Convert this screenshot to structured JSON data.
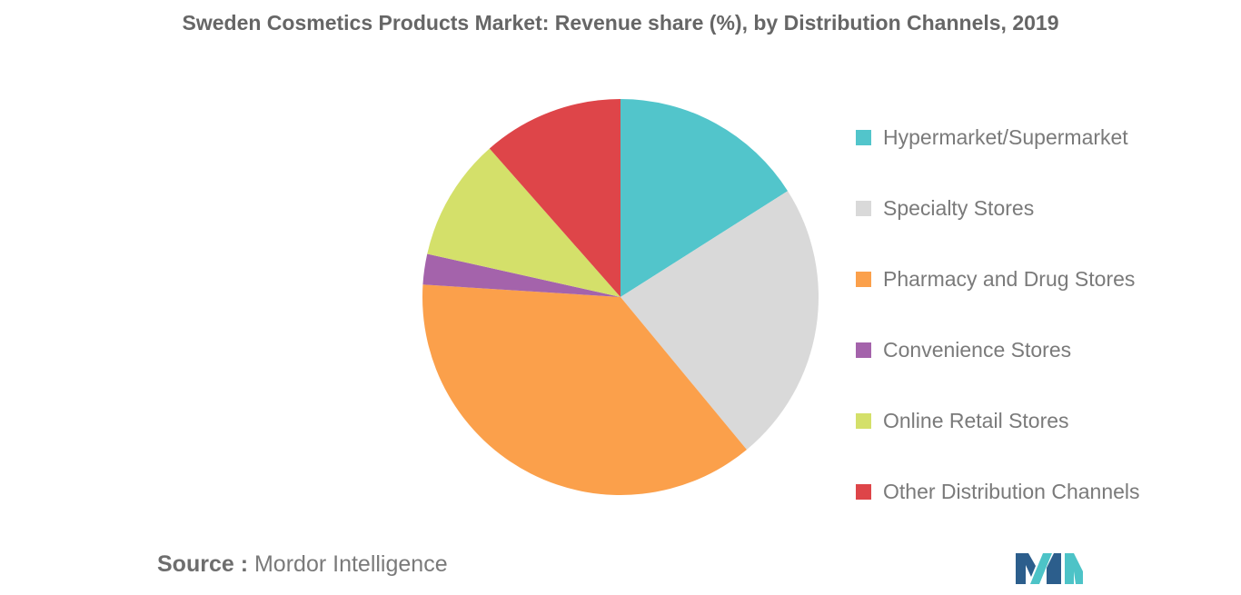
{
  "chart_data": {
    "type": "pie",
    "title": "Sweden Cosmetics Products Market: Revenue share (%), by Distribution Channels, 2019",
    "categories": [
      "Hypermarket/Supermarket",
      "Specialty Stores",
      "Pharmacy and Drug Stores",
      "Convenience Stores",
      "Online Retail Stores",
      "Other Distribution Channels"
    ],
    "values": [
      16,
      23,
      37,
      2.5,
      10,
      11.5
    ],
    "colors": [
      "#52C5CB",
      "#D9D9D9",
      "#FBA04B",
      "#A463AB",
      "#D4E06A",
      "#DE4549"
    ],
    "legend_position": "right"
  },
  "source": {
    "label": "Source :",
    "text": "Mordor Intelligence"
  },
  "logo": {
    "icon": "mordor-intelligence-logo-icon",
    "colors": [
      "#2C5E8C",
      "#4DC3C7"
    ]
  }
}
